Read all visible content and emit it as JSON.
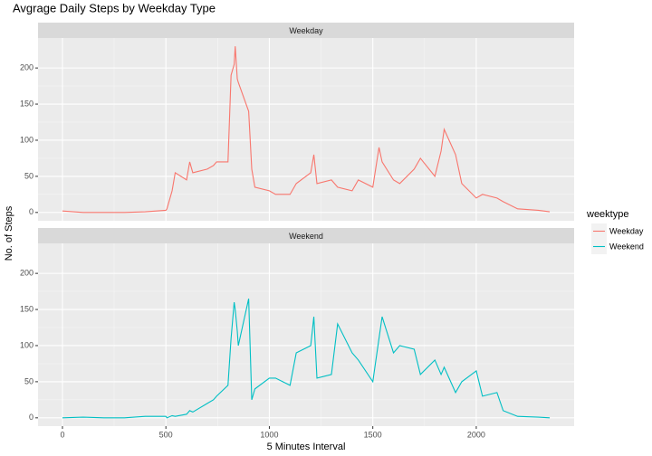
{
  "chart_data": {
    "type": "line",
    "title": "Avgrage Daily Steps by Weekday Type",
    "x_label": "5 Minutes Interval",
    "y_label": "No. of Steps",
    "legend_title": "weektype",
    "facet": true,
    "grid": true,
    "x": [
      0,
      100,
      200,
      300,
      400,
      500,
      505,
      530,
      545,
      600,
      615,
      630,
      700,
      730,
      745,
      800,
      815,
      830,
      835,
      845,
      850,
      900,
      915,
      930,
      1000,
      1030,
      1100,
      1130,
      1200,
      1215,
      1230,
      1300,
      1330,
      1400,
      1430,
      1500,
      1530,
      1545,
      1600,
      1630,
      1700,
      1730,
      1800,
      1830,
      1845,
      1900,
      1930,
      2000,
      2030,
      2100,
      2130,
      2200,
      2300,
      2355
    ],
    "series": [
      {
        "name": "Weekday",
        "color": "#F8766D",
        "values": [
          2,
          0,
          0,
          0,
          1,
          3,
          5,
          30,
          55,
          45,
          70,
          55,
          60,
          65,
          70,
          70,
          190,
          205,
          230,
          185,
          180,
          140,
          60,
          35,
          30,
          25,
          25,
          40,
          55,
          80,
          40,
          45,
          35,
          30,
          45,
          35,
          90,
          70,
          45,
          40,
          60,
          75,
          50,
          85,
          115,
          80,
          40,
          20,
          25,
          20,
          15,
          5,
          3,
          1
        ]
      },
      {
        "name": "Weekend",
        "color": "#00BFC4",
        "values": [
          0,
          1,
          0,
          0,
          2,
          2,
          0,
          3,
          2,
          5,
          10,
          8,
          20,
          25,
          30,
          45,
          110,
          160,
          150,
          120,
          100,
          165,
          25,
          40,
          55,
          55,
          45,
          90,
          100,
          140,
          55,
          60,
          130,
          90,
          80,
          50,
          110,
          140,
          90,
          100,
          95,
          60,
          80,
          60,
          70,
          35,
          50,
          65,
          30,
          35,
          10,
          2,
          1,
          0
        ]
      }
    ],
    "xlim": [
      -118,
      2473
    ],
    "xticks": [
      0,
      500,
      1000,
      1500,
      2000
    ],
    "ylim": [
      -11.5,
      241.5
    ],
    "yticks": [
      0,
      50,
      100,
      150,
      200
    ]
  }
}
